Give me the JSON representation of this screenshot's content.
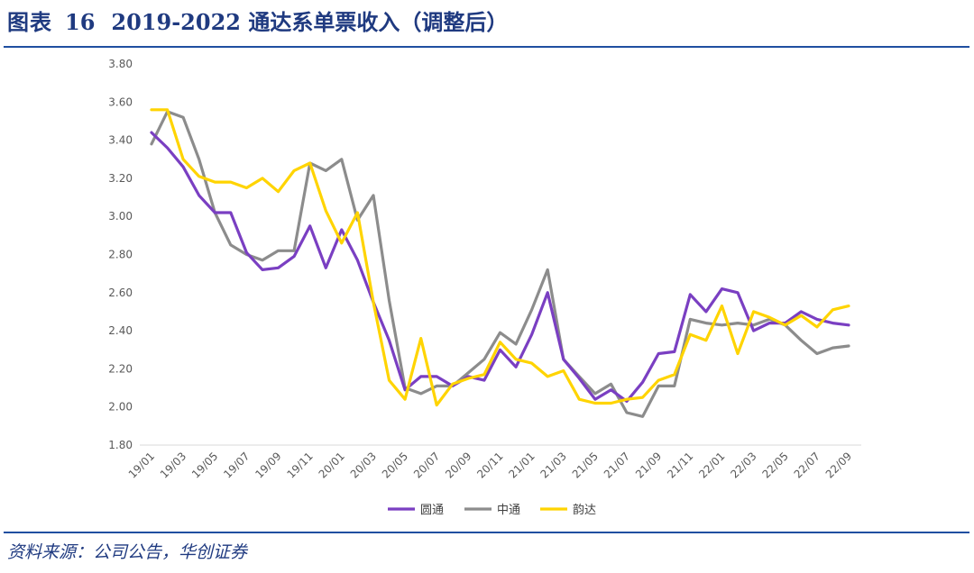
{
  "header": {
    "figure_label": "图表",
    "figure_number": "16",
    "figure_title": "2019-2022 通达系单票收入（调整后）"
  },
  "footer": {
    "source": "资料来源：公司公告，华创证券"
  },
  "colors": {
    "rule": "#1f4fa0",
    "title": "#1f3a80",
    "yuantong": "#7a3fc2",
    "zhongtong": "#8c8c8c",
    "yunda": "#ffd400"
  },
  "chart_data": {
    "type": "line",
    "title": "",
    "xlabel": "",
    "ylabel": "",
    "ylim": [
      1.8,
      3.8
    ],
    "yticks": [
      "1.80",
      "2.00",
      "2.20",
      "2.40",
      "2.60",
      "2.80",
      "3.00",
      "3.20",
      "3.40",
      "3.60",
      "3.80"
    ],
    "grid": false,
    "legend_position": "bottom",
    "x": [
      "19/01",
      "19/02",
      "19/03",
      "19/04",
      "19/05",
      "19/06",
      "19/07",
      "19/08",
      "19/09",
      "19/10",
      "19/11",
      "19/12",
      "20/01",
      "20/02",
      "20/03",
      "20/04",
      "20/05",
      "20/06",
      "20/07",
      "20/08",
      "20/09",
      "20/10",
      "20/11",
      "20/12",
      "21/01",
      "21/02",
      "21/03",
      "21/04",
      "21/05",
      "21/06",
      "21/07",
      "21/08",
      "21/09",
      "21/10",
      "21/11",
      "21/12",
      "22/01",
      "22/02",
      "22/03",
      "22/04",
      "22/05",
      "22/06",
      "22/07",
      "22/08",
      "22/09"
    ],
    "xtick_labels": [
      "19/01",
      "19/03",
      "19/05",
      "19/07",
      "19/09",
      "19/11",
      "20/01",
      "20/03",
      "20/05",
      "20/07",
      "20/09",
      "20/11",
      "21/01",
      "21/03",
      "21/05",
      "21/07",
      "21/09",
      "21/11",
      "22/01",
      "22/03",
      "22/05",
      "22/07",
      "22/09"
    ],
    "series": [
      {
        "name": "圆通",
        "color": "#7a3fc2",
        "values": [
          3.44,
          3.36,
          3.26,
          3.11,
          3.02,
          3.02,
          2.81,
          2.72,
          2.73,
          2.79,
          2.95,
          2.73,
          2.93,
          2.77,
          2.55,
          2.35,
          2.09,
          2.16,
          2.16,
          2.11,
          2.16,
          2.14,
          2.3,
          2.21,
          2.38,
          2.6,
          2.25,
          2.15,
          2.04,
          2.09,
          2.03,
          2.13,
          2.28,
          2.29,
          2.59,
          2.5,
          2.62,
          2.6,
          2.4,
          2.44,
          2.44,
          2.5,
          2.46,
          2.44,
          2.43
        ]
      },
      {
        "name": "中通",
        "color": "#8c8c8c",
        "values": [
          3.38,
          3.55,
          3.52,
          3.3,
          3.02,
          2.85,
          2.8,
          2.77,
          2.82,
          2.82,
          3.28,
          3.24,
          3.3,
          2.98,
          3.11,
          2.56,
          2.1,
          2.07,
          2.11,
          2.11,
          2.18,
          2.25,
          2.39,
          2.33,
          2.51,
          2.72,
          2.25,
          2.16,
          2.07,
          2.12,
          1.97,
          1.95,
          2.11,
          2.11,
          2.46,
          2.44,
          2.43,
          2.44,
          2.43,
          2.46,
          2.43,
          2.35,
          2.28,
          2.31,
          2.32
        ]
      },
      {
        "name": "韵达",
        "color": "#ffd400",
        "values": [
          3.56,
          3.56,
          3.3,
          3.21,
          3.18,
          3.18,
          3.15,
          3.2,
          3.13,
          3.24,
          3.28,
          3.03,
          2.86,
          3.02,
          2.55,
          2.14,
          2.04,
          2.36,
          2.01,
          2.12,
          2.15,
          2.17,
          2.34,
          2.25,
          2.23,
          2.16,
          2.19,
          2.04,
          2.02,
          2.02,
          2.04,
          2.05,
          2.14,
          2.17,
          2.38,
          2.35,
          2.53,
          2.28,
          2.5,
          2.47,
          2.43,
          2.48,
          2.42,
          2.51,
          2.53
        ]
      }
    ]
  }
}
